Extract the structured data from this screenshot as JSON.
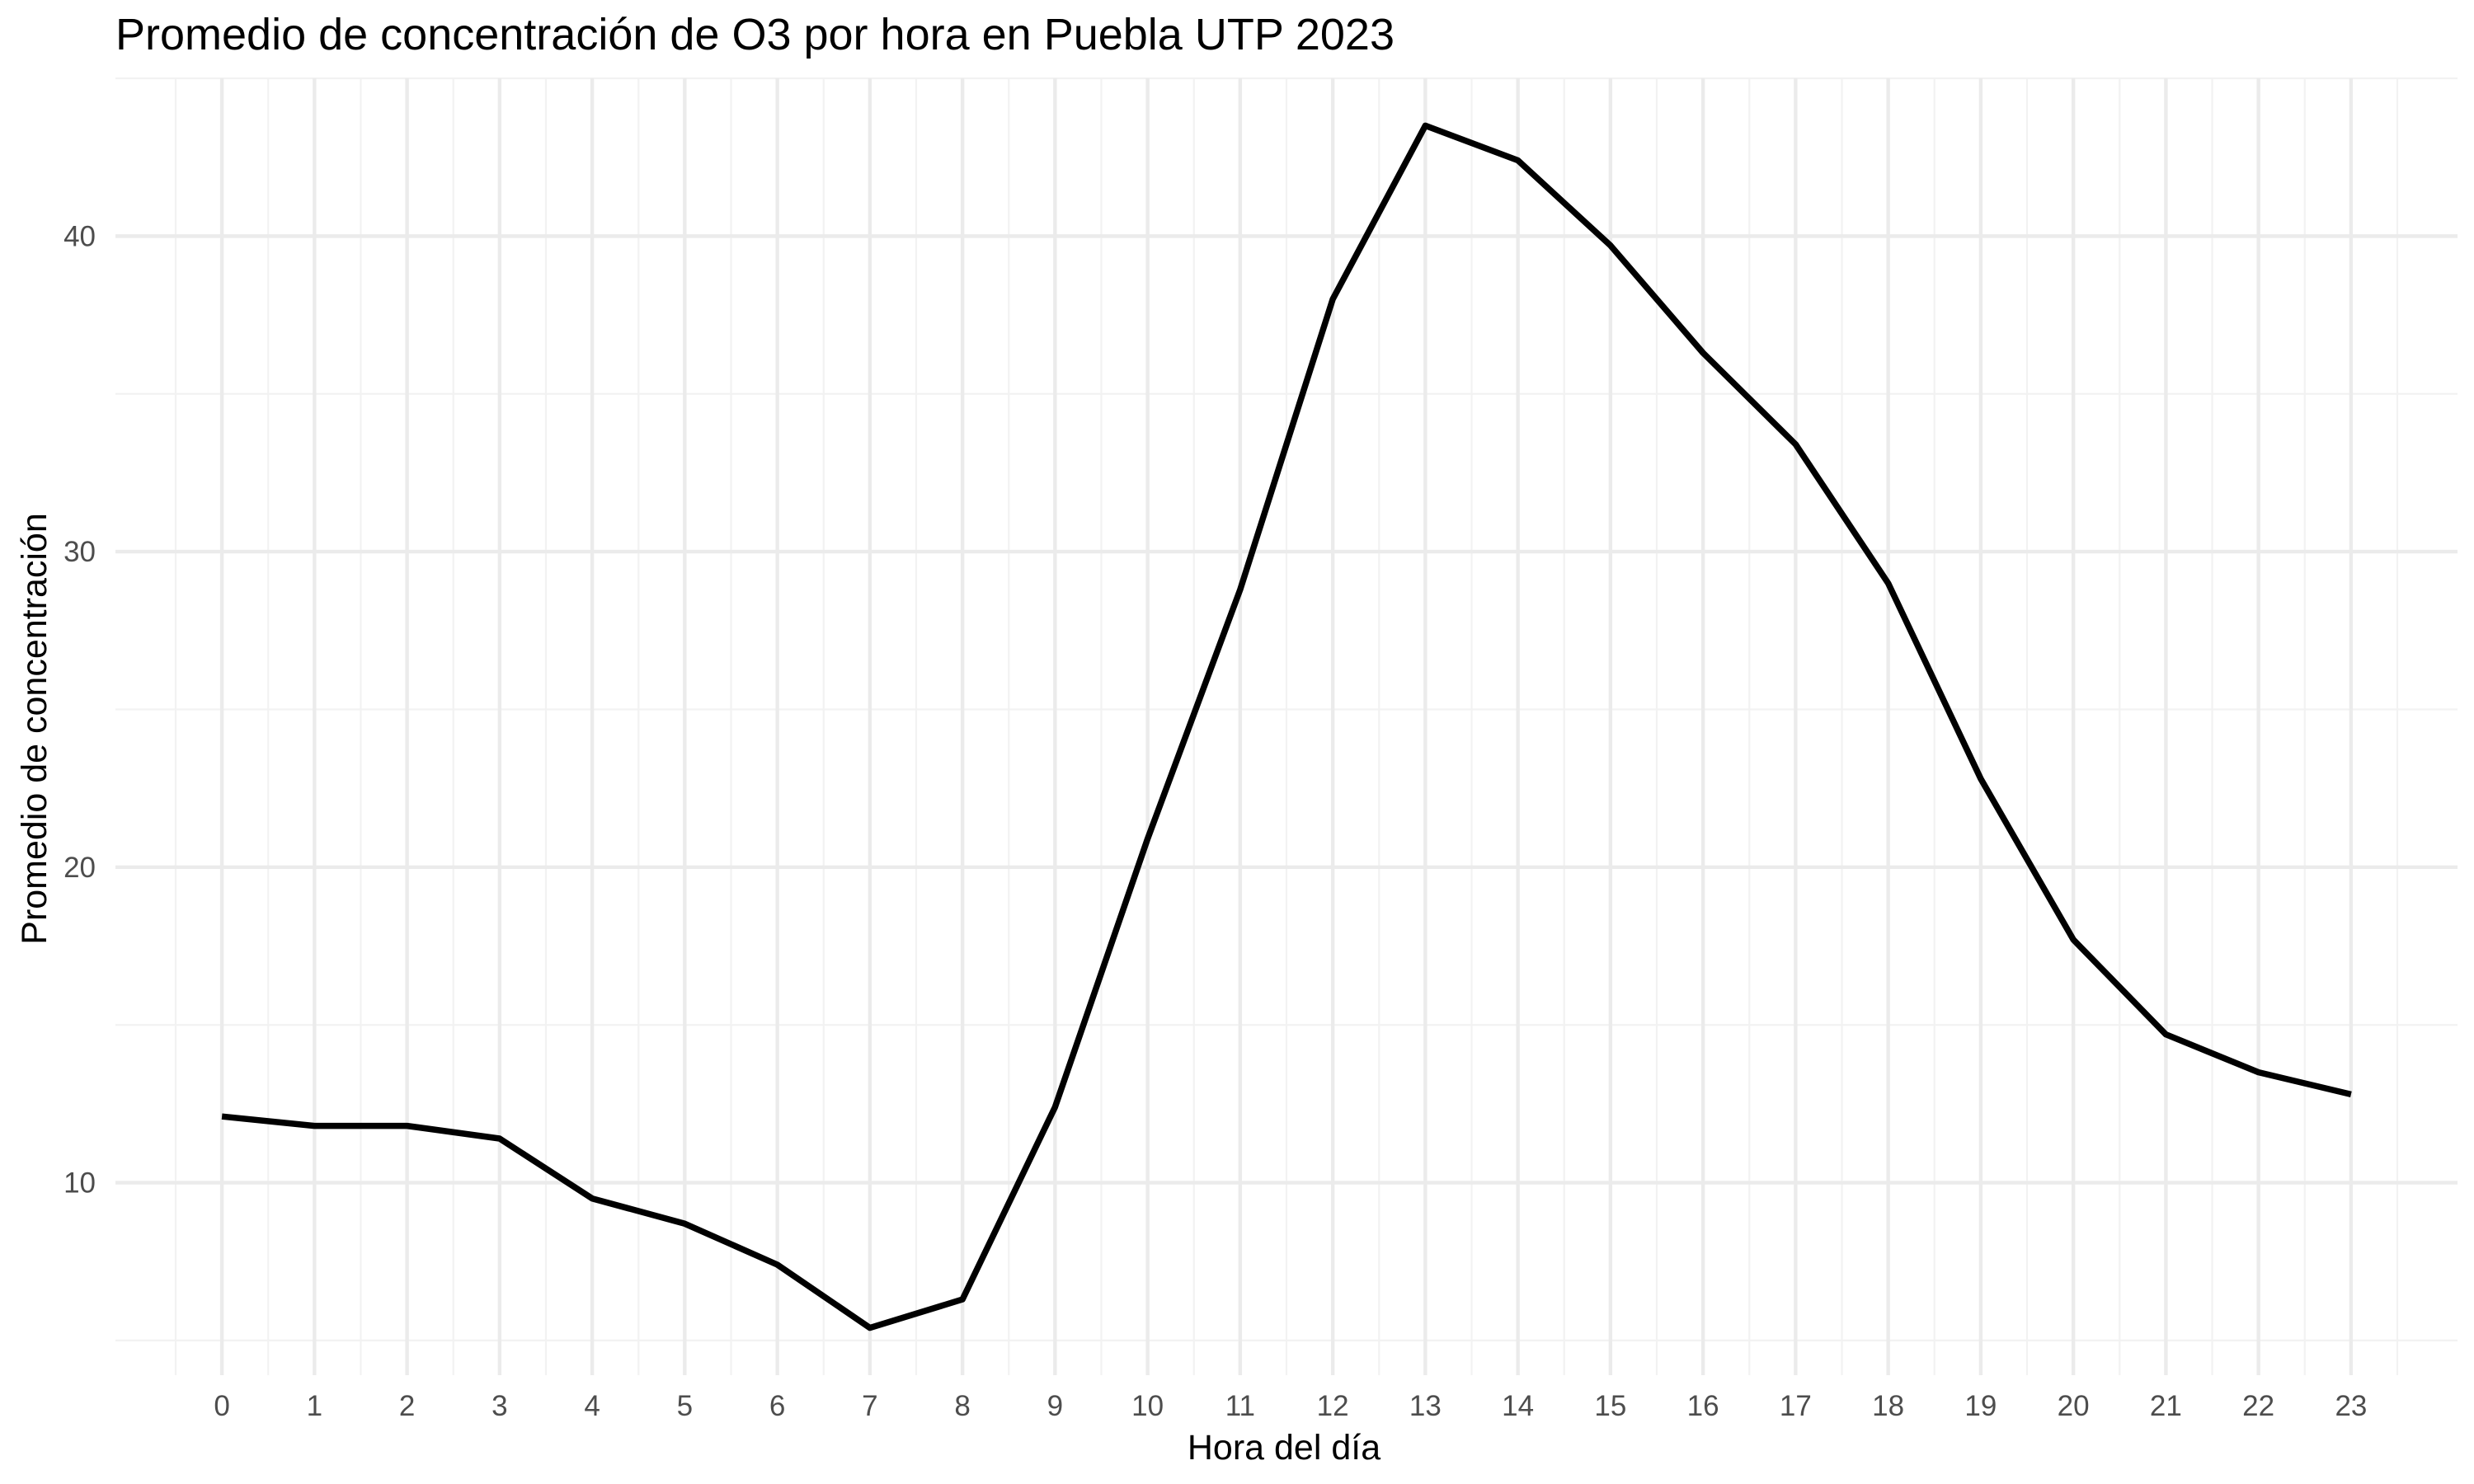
{
  "chart_data": {
    "type": "line",
    "title": "Promedio de concentración de O3 por hora en Puebla UTP 2023",
    "xlabel": "Hora del día",
    "ylabel": "Promedio de concentración",
    "x": [
      0,
      1,
      2,
      3,
      4,
      5,
      6,
      7,
      8,
      9,
      10,
      11,
      12,
      13,
      14,
      15,
      16,
      17,
      18,
      19,
      20,
      21,
      22,
      23
    ],
    "x_tick_labels": [
      "0",
      "1",
      "2",
      "3",
      "4",
      "5",
      "6",
      "7",
      "8",
      "9",
      "10",
      "11",
      "12",
      "13",
      "14",
      "15",
      "16",
      "17",
      "18",
      "19",
      "20",
      "21",
      "22",
      "23"
    ],
    "y_ticks": [
      10,
      20,
      30,
      40
    ],
    "y_tick_labels": [
      "10",
      "20",
      "30",
      "40"
    ],
    "xlim": [
      -1.15,
      24.15
    ],
    "ylim": [
      3.9,
      45.0
    ],
    "grid": true,
    "legend": "none",
    "series": [
      {
        "color": "#000000",
        "values": [
          12.1,
          11.8,
          11.8,
          11.4,
          9.5,
          8.7,
          7.4,
          5.4,
          6.3,
          12.4,
          20.9,
          28.8,
          38.0,
          43.5,
          42.4,
          39.7,
          36.3,
          33.4,
          29.0,
          22.8,
          17.7,
          14.7,
          13.5,
          12.8
        ]
      }
    ]
  }
}
